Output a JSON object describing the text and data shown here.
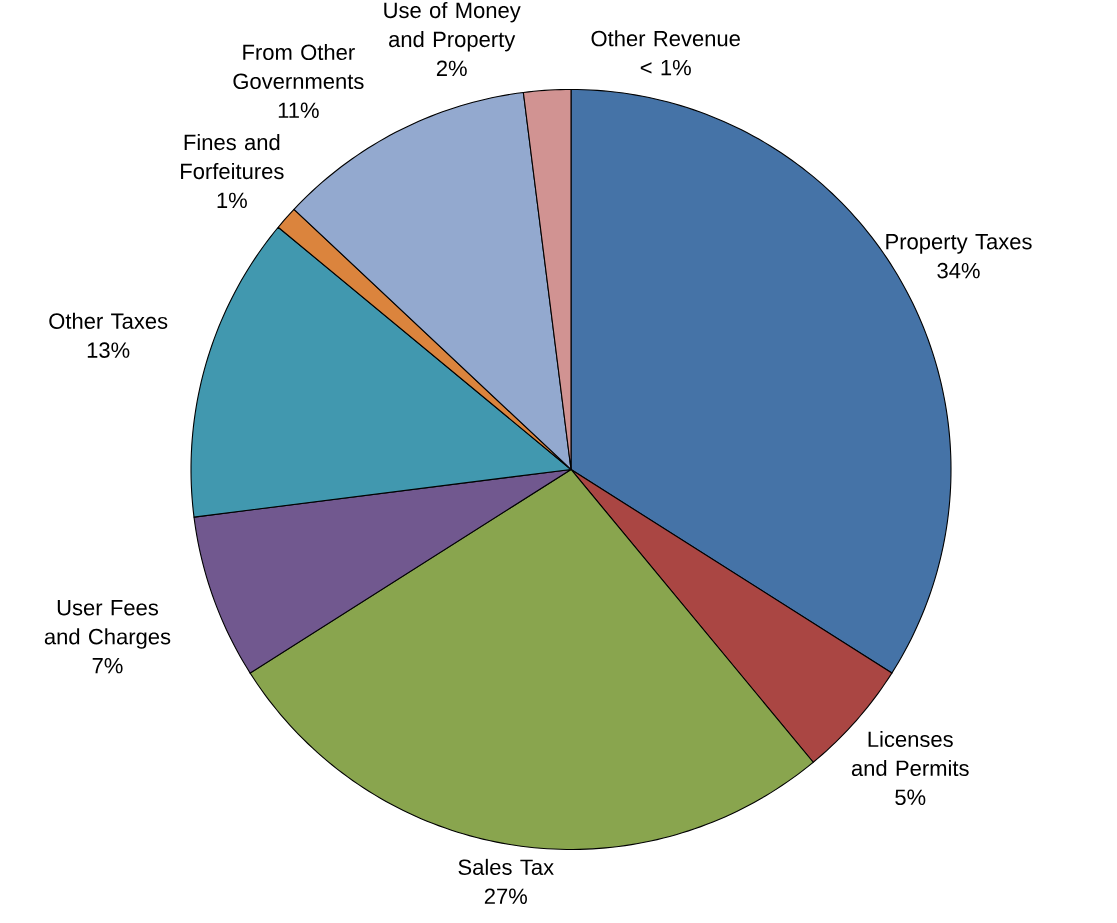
{
  "chart_data": {
    "type": "pie",
    "categories": [
      "Property Taxes",
      "Licenses and Permits",
      "Sales Tax",
      "User Fees and Charges",
      "Other Taxes",
      "Fines and Forfeitures",
      "From Other Governments",
      "Use of Money and Property",
      "Other Revenue"
    ],
    "values": [
      34,
      5,
      27,
      7,
      13,
      1,
      11,
      2,
      0
    ],
    "colors": [
      "#4573a7",
      "#aa4643",
      "#89a54e",
      "#71588f",
      "#4198af",
      "#db843d",
      "#93a9cf",
      "#d19392",
      "#b9cd96"
    ],
    "value_labels": [
      "34%",
      "5%",
      "27%",
      "7%",
      "13%",
      "1%",
      "11%",
      "2%",
      "< 1%"
    ]
  }
}
